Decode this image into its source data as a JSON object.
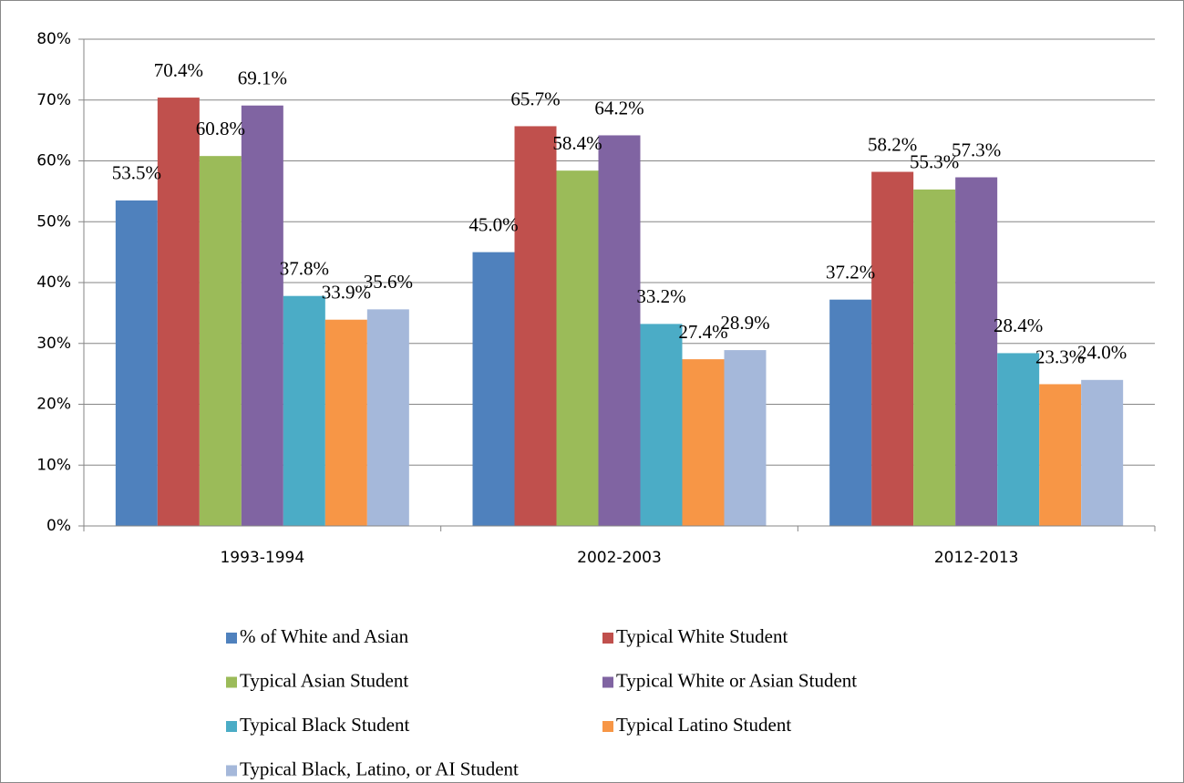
{
  "chart_data": {
    "type": "bar",
    "categories": [
      "1993-1994",
      "2002-2003",
      "2012-2013"
    ],
    "series": [
      {
        "name": "% of White and Asian",
        "color": "#4f81bd",
        "values": [
          53.5,
          45.0,
          37.2
        ],
        "value_labels": [
          "53.5%",
          "45.0%",
          "37.2%"
        ]
      },
      {
        "name": "Typical White Student",
        "color": "#c0504d",
        "values": [
          70.4,
          65.7,
          58.2
        ],
        "value_labels": [
          "70.4%",
          "65.7%",
          "58.2%"
        ]
      },
      {
        "name": "Typical Asian Student",
        "color": "#9bbb59",
        "values": [
          60.8,
          58.4,
          55.3
        ],
        "value_labels": [
          "60.8%",
          "58.4%",
          "55.3%"
        ]
      },
      {
        "name": "Typical White or Asian Student",
        "color": "#8064a2",
        "values": [
          69.1,
          64.2,
          57.3
        ],
        "value_labels": [
          "69.1%",
          "64.2%",
          "57.3%"
        ]
      },
      {
        "name": "Typical Black Student",
        "color": "#4bacc6",
        "values": [
          37.8,
          33.2,
          28.4
        ],
        "value_labels": [
          "37.8%",
          "33.2%",
          "28.4%"
        ]
      },
      {
        "name": "Typical Latino Student",
        "color": "#f79646",
        "values": [
          33.9,
          27.4,
          23.3
        ],
        "value_labels": [
          "33.9%",
          "27.4%",
          "23.3%"
        ]
      },
      {
        "name": "Typical Black, Latino, or AI Student",
        "color": "#a5b8da",
        "values": [
          35.6,
          28.9,
          24.0
        ],
        "value_labels": [
          "35.6%",
          "28.9%",
          "24.0%"
        ]
      }
    ],
    "ylim": [
      0,
      80
    ],
    "yticks": [
      {
        "value": 0,
        "label": "0%"
      },
      {
        "value": 10,
        "label": "10%"
      },
      {
        "value": 20,
        "label": "20%"
      },
      {
        "value": 30,
        "label": "30%"
      },
      {
        "value": 40,
        "label": "40%"
      },
      {
        "value": 50,
        "label": "50%"
      },
      {
        "value": 60,
        "label": "60%"
      },
      {
        "value": 70,
        "label": "70%"
      },
      {
        "value": 80,
        "label": "80%"
      }
    ],
    "grid": true,
    "legend": "bottom"
  }
}
